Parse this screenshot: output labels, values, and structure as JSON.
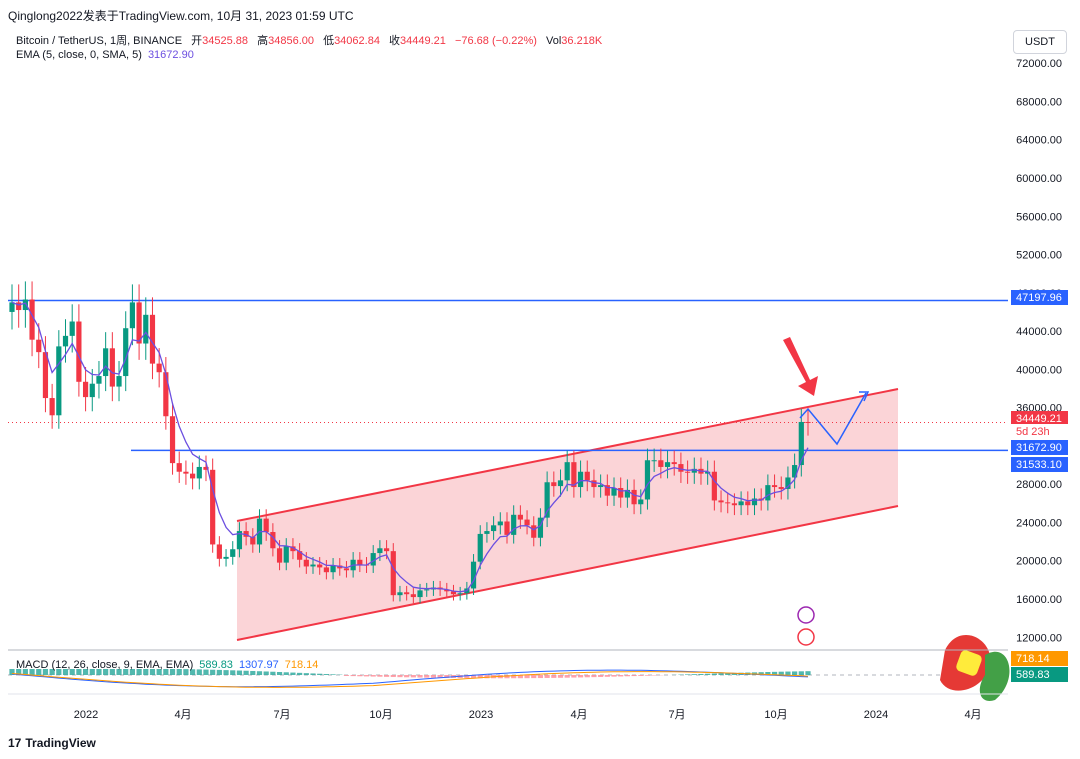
{
  "header": {
    "source_line": "Qinglong2022发表于TradingView.com, 10月 31, 2023 01:59 UTC"
  },
  "legend": {
    "symbol": "Bitcoin / TetherUS, 1周, BINANCE",
    "open_label": "开",
    "open": "34525.88",
    "high_label": "高",
    "high": "34856.00",
    "low_label": "低",
    "low": "34062.84",
    "close_label": "收",
    "close": "34449.21",
    "change": "−76.68 (−0.22%)",
    "vol_label": "Vol",
    "vol": "36.218K",
    "ema_label": "EMA (5, close, 0, SMA, 5)",
    "ema_value": "31672.90"
  },
  "macd_legend": {
    "label": "MACD (12, 26, close, 9, EMA, EMA)",
    "hist": "589.83",
    "macd": "1307.97",
    "signal": "718.14"
  },
  "currency_button": "USDT",
  "footer": {
    "brand": "TradingView",
    "logo_glyph": "17"
  },
  "colors": {
    "up": "#089981",
    "down": "#f23645",
    "ema": "#6c4fe0",
    "hline": "#2962ff",
    "channel_fill": "#f9c5c9",
    "channel_line": "#f23645"
  },
  "chart_data": {
    "type": "candlestick",
    "title": "Bitcoin / TetherUS, 1周, BINANCE",
    "ylim": [
      9600,
      74000
    ],
    "y_ticks": [
      "12000.00",
      "16000.00",
      "20000.00",
      "24000.00",
      "28000.00",
      "32000.00",
      "36000.00",
      "40000.00",
      "44000.00",
      "48000.00",
      "52000.00",
      "56000.00",
      "60000.00",
      "64000.00",
      "68000.00",
      "72000.00"
    ],
    "x_ticks": [
      "2022",
      "4月",
      "7月",
      "10月",
      "2023",
      "4月",
      "7月",
      "10月",
      "2024",
      "4月"
    ],
    "price_labels": [
      {
        "text": "47197.96",
        "color": "#2962ff"
      },
      {
        "text": "34449.21",
        "color": "#f23645"
      },
      {
        "text": "5d 23h",
        "color": "#f23645"
      },
      {
        "text": "31672.90",
        "color": "#2962ff"
      },
      {
        "text": "31533.10",
        "color": "#2962ff"
      },
      {
        "text": "718.14",
        "color": "#ff9800"
      },
      {
        "text": "589.83",
        "color": "#089981"
      }
    ],
    "horizontal_lines": [
      47197.96,
      31533.1
    ],
    "close_series": [
      47000,
      46200,
      47300,
      43100,
      41800,
      37000,
      35200,
      42400,
      43500,
      45000,
      38700,
      37100,
      38500,
      39300,
      42200,
      38200,
      39300,
      44300,
      47000,
      42700,
      45700,
      40600,
      39700,
      35100,
      30200,
      29300,
      29100,
      28600,
      29800,
      29500,
      21700,
      20200,
      20400,
      21200,
      23100,
      22500,
      21700,
      24400,
      23000,
      21300,
      19800,
      21500,
      21000,
      20100,
      19400,
      19600,
      19300,
      18800,
      19500,
      19200,
      19000,
      20100,
      19600,
      19500,
      20800,
      21300,
      21000,
      16400,
      16700,
      16500,
      16200,
      16900,
      17000,
      17200,
      17000,
      16800,
      16500,
      16600,
      17100,
      19900,
      22800,
      23100,
      23700,
      24100,
      22700,
      24800,
      24300,
      23700,
      22400,
      24500,
      28200,
      27800,
      28400,
      30300,
      27700,
      29300,
      28400,
      27700,
      27900,
      26800,
      27600,
      26600,
      27400,
      25900,
      26400,
      30500,
      30500,
      29800,
      30300,
      30100,
      29300,
      29200,
      29600,
      29100,
      29300,
      26300,
      26100,
      26000,
      25800,
      26200,
      25800,
      26500,
      26300,
      27900,
      27700,
      27500,
      28700,
      30000,
      34500,
      34449
    ],
    "channel": {
      "upper": [
        [
          2022.46,
          [
            24000
          ]
        ],
        [
          2023.97,
          37500
        ]
      ],
      "lower": [
        [
          2022.46,
          11200
        ],
        [
          2023.97,
          25200
        ]
      ]
    },
    "annotation_arrow": "down arrow at 2023-10 channel top",
    "projection_path": "up to upper band, down to 31533, up toward upper band"
  }
}
